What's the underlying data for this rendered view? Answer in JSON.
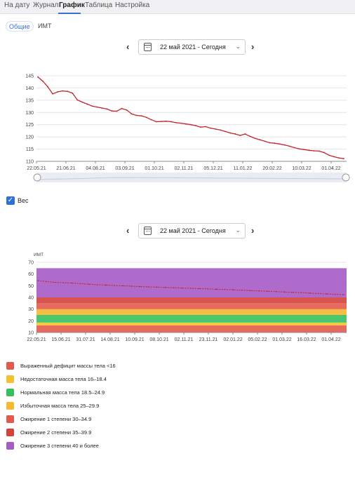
{
  "nav": {
    "tabs": [
      "На дату",
      "Журнал",
      "График",
      "Таблица",
      "Настройка"
    ],
    "active": "График"
  },
  "subtabs": {
    "general": "Общие",
    "bmi": "ИМТ"
  },
  "range1": {
    "label": "22 май 2021 - Сегодня"
  },
  "range2": {
    "label": "22 май 2021 - Сегодня"
  },
  "checkbox": {
    "label": "Вес",
    "checked": true
  },
  "colors": {
    "accent": "#3a6fd8",
    "line": "#c0282d"
  },
  "chart_data": [
    {
      "type": "line",
      "title": "",
      "ylim": [
        110,
        145
      ],
      "yticks": [
        110,
        115,
        120,
        125,
        130,
        135,
        140,
        145
      ],
      "xticks": [
        "22.05.21",
        "21.06.21",
        "04.08.21",
        "03.09.21",
        "01.10.21",
        "02.11.21",
        "05.12.21",
        "11.01.22",
        "20.02.22",
        "10.03.22",
        "01.04.22"
      ],
      "series": [
        {
          "values": [
            144.5,
            142.8,
            140.5,
            137.6,
            138.4,
            138.8,
            138.6,
            137.9,
            135.1,
            134.2,
            133.4,
            132.6,
            132.2,
            131.8,
            131.4,
            130.6,
            130.5,
            131.6,
            131.0,
            129.4,
            128.8,
            128.6,
            128.0,
            127.0,
            126.2,
            126.3,
            126.4,
            126.2,
            125.8,
            125.6,
            125.3,
            125.0,
            124.6,
            124.0,
            124.2,
            123.6,
            123.2,
            122.8,
            122.2,
            121.6,
            121.2,
            120.6,
            121.2,
            120.2,
            119.4,
            118.8,
            118.2,
            117.6,
            117.4,
            117.1,
            116.7,
            116.2,
            115.6,
            115.1,
            114.8,
            114.5,
            114.3,
            114.2,
            113.6,
            112.5,
            111.9,
            111.4,
            111.1
          ]
        }
      ]
    },
    {
      "type": "area",
      "ylabel": "ИМТ",
      "ylim": [
        10,
        70
      ],
      "yticks": [
        10,
        20,
        30,
        40,
        50,
        60,
        70
      ],
      "xticks": [
        "22.05.21",
        "15.06.21",
        "31.07.21",
        "14.08.21",
        "10.09.21",
        "08.10.21",
        "02.11.21",
        "23.11.21",
        "02.01.22",
        "05.02.22",
        "01.03.22",
        "16.03.22",
        "01.04.22"
      ],
      "bands": [
        {
          "from": 10,
          "to": 16,
          "color": "#e35a4d"
        },
        {
          "from": 16,
          "to": 18.5,
          "color": "#f2c230"
        },
        {
          "from": 18.5,
          "to": 25,
          "color": "#35c05e"
        },
        {
          "from": 25,
          "to": 30,
          "color": "#f5b82f"
        },
        {
          "from": 30,
          "to": 35,
          "color": "#e35a4d"
        },
        {
          "from": 35,
          "to": 40,
          "color": "#d5413b"
        },
        {
          "from": 40,
          "to": 65,
          "color": "#a55bc6"
        }
      ],
      "series": [
        {
          "values": [
            54.4,
            53.6,
            52.9,
            52.6,
            52.3,
            51.8,
            51.3,
            50.9,
            50.6,
            50.2,
            49.9,
            49.6,
            49.3,
            49.0,
            48.8,
            48.5,
            48.3,
            48.0,
            47.8,
            47.5,
            47.3,
            47.0,
            46.8,
            46.5,
            46.2,
            45.9,
            45.6,
            45.3,
            45.0,
            44.7,
            44.4,
            44.1,
            43.7,
            43.3,
            43.0,
            42.7,
            42.4
          ]
        }
      ]
    }
  ],
  "legend": [
    {
      "label": "Выраженный дефицит массы тела <16",
      "color": "#e35a4d"
    },
    {
      "label": "Недостаточная масса тела 16–18.4",
      "color": "#f2c230"
    },
    {
      "label": "Нормальная масса тела 18.5–24.9",
      "color": "#35c05e"
    },
    {
      "label": "Избыточная масса тела 25–29.9",
      "color": "#f5b82f"
    },
    {
      "label": "Ожирение 1 степени 30–34.9",
      "color": "#e35a4d"
    },
    {
      "label": "Ожирение 2 степени 35–39.9",
      "color": "#d5413b"
    },
    {
      "label": "Ожирение 3 степени 40 и более",
      "color": "#a55bc6"
    }
  ]
}
